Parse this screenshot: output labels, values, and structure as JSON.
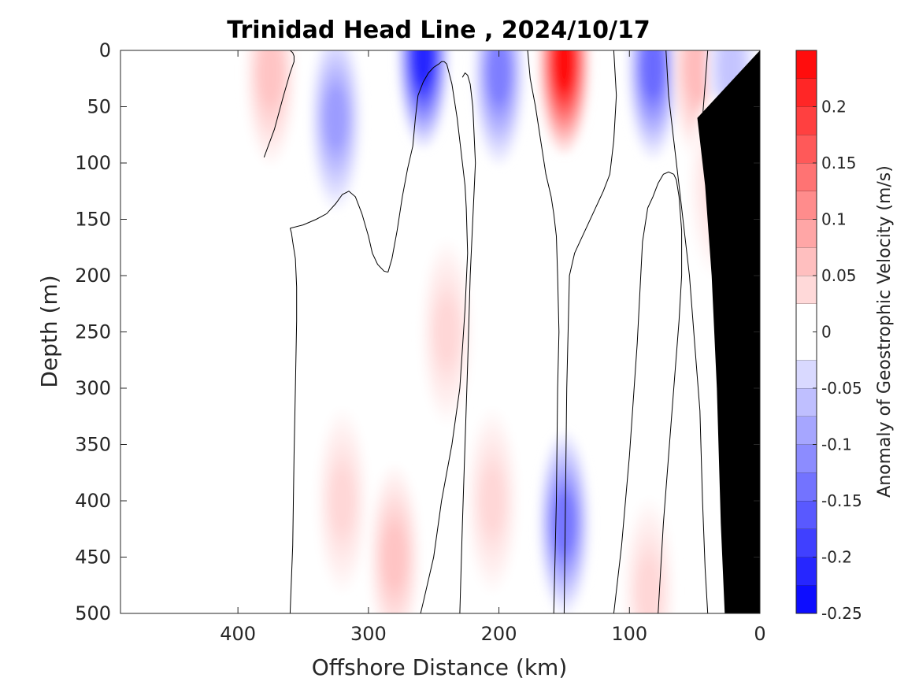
{
  "chart_data": {
    "type": "heatmap",
    "subtype": "filled-contour",
    "title": "Trinidad Head Line , 2024/10/17",
    "xlabel": "Offshore Distance (km)",
    "ylabel": "Depth (m)",
    "colorbar_label": "Anomaly of Geostrophic Velocity (m/s)",
    "xlim": [
      490,
      0
    ],
    "ylim": [
      500,
      0
    ],
    "x_reversed": true,
    "y_reversed": true,
    "x_ticks": [
      400,
      300,
      200,
      100,
      0
    ],
    "y_ticks": [
      0,
      50,
      100,
      150,
      200,
      250,
      300,
      350,
      400,
      450,
      500
    ],
    "colorbar": {
      "range": [
        -0.25,
        0.25
      ],
      "ticks": [
        -0.25,
        -0.2,
        -0.15,
        -0.1,
        -0.05,
        0,
        0.05,
        0.1,
        0.15,
        0.2
      ],
      "tick_labels": [
        "-0.25",
        "-0.2",
        "-0.15",
        "-0.1",
        "-0.05",
        "0",
        "0.05",
        "0.1",
        "0.15",
        "0.2"
      ],
      "levels": [
        -0.25,
        -0.225,
        -0.2,
        -0.175,
        -0.15,
        -0.125,
        -0.1,
        -0.075,
        -0.05,
        -0.025,
        0.025,
        0.05,
        0.075,
        0.1,
        0.125,
        0.15,
        0.175,
        0.2,
        0.225,
        0.25
      ],
      "colormap": "blue-white-red",
      "negative_color": "#0000ff",
      "positive_color": "#ff0000",
      "zero_color": "#ffffff"
    },
    "features": [
      {
        "kind": "positive",
        "x": 375,
        "depth": 20,
        "peak": 0.06
      },
      {
        "kind": "negative",
        "x": 325,
        "depth": 60,
        "peak": -0.1
      },
      {
        "kind": "negative",
        "x": 258,
        "depth": 5,
        "peak": -0.22
      },
      {
        "kind": "negative",
        "x": 200,
        "depth": 20,
        "peak": -0.13
      },
      {
        "kind": "positive",
        "x": 150,
        "depth": 10,
        "peak": 0.24
      },
      {
        "kind": "negative",
        "x": 82,
        "depth": 15,
        "peak": -0.15
      },
      {
        "kind": "positive",
        "x": 48,
        "depth": 15,
        "peak": 0.07
      },
      {
        "kind": "negative",
        "x": 22,
        "depth": 15,
        "peak": -0.06
      },
      {
        "kind": "positive",
        "x": 240,
        "depth": 250,
        "peak": 0.04
      },
      {
        "kind": "positive",
        "x": 280,
        "depth": 450,
        "peak": 0.06
      },
      {
        "kind": "positive",
        "x": 320,
        "depth": 400,
        "peak": 0.04
      },
      {
        "kind": "positive",
        "x": 205,
        "depth": 400,
        "peak": 0.04
      },
      {
        "kind": "negative",
        "x": 150,
        "depth": 420,
        "peak": -0.14
      },
      {
        "kind": "positive",
        "x": 85,
        "depth": 480,
        "peak": 0.04
      },
      {
        "kind": "positive",
        "x": 35,
        "depth": 120,
        "peak": 0.03
      }
    ],
    "zero_contours": [
      {
        "x": [
          380,
          372,
          365,
          360,
          357,
          357,
          358,
          360
        ],
        "depth": [
          95,
          70,
          40,
          20,
          10,
          5,
          2,
          0
        ]
      },
      {
        "x": [
          360,
          358,
          357,
          356,
          355,
          355,
          356,
          358,
          359,
          360
        ],
        "depth": [
          500,
          440,
          360,
          300,
          240,
          210,
          185,
          170,
          162,
          158
        ]
      },
      {
        "x": [
          360,
          350,
          340,
          332,
          325,
          320,
          315,
          310,
          305,
          300,
          297,
          293,
          288,
          285
        ],
        "depth": [
          158,
          155,
          150,
          145,
          136,
          128,
          125,
          130,
          145,
          165,
          180,
          190,
          196,
          197
        ]
      },
      {
        "x": [
          285,
          282,
          278,
          274,
          270,
          266,
          264,
          262,
          258,
          254,
          250,
          246,
          244,
          242,
          240
        ],
        "depth": [
          197,
          185,
          160,
          130,
          105,
          85,
          60,
          40,
          28,
          20,
          15,
          12,
          10,
          10,
          12
        ]
      },
      {
        "x": [
          240,
          236,
          232,
          228,
          226,
          225,
          224,
          226,
          230,
          236,
          244,
          250,
          254,
          258,
          260
        ],
        "depth": [
          12,
          30,
          60,
          100,
          120,
          140,
          180,
          230,
          300,
          350,
          400,
          450,
          470,
          490,
          500
        ]
      },
      {
        "x": [
          228,
          226,
          224,
          222,
          220,
          218,
          220,
          222,
          224,
          226,
          228,
          230
        ],
        "depth": [
          24,
          20,
          22,
          30,
          50,
          100,
          150,
          200,
          280,
          350,
          420,
          500
        ]
      },
      {
        "x": [
          178,
          176,
          172,
          168,
          164,
          160,
          158,
          156,
          155,
          154,
          155,
          156,
          158
        ],
        "depth": [
          0,
          25,
          50,
          80,
          110,
          130,
          145,
          165,
          200,
          250,
          300,
          400,
          500
        ]
      },
      {
        "x": [
          112,
          110,
          112,
          115,
          120,
          126,
          132,
          138,
          142,
          146,
          148,
          150
        ],
        "depth": [
          0,
          40,
          80,
          110,
          125,
          140,
          155,
          170,
          180,
          200,
          300,
          500
        ]
      },
      {
        "x": [
          78,
          74,
          70,
          66,
          62,
          60,
          60,
          62,
          64,
          66
        ],
        "depth": [
          500,
          420,
          360,
          300,
          240,
          200,
          160,
          130,
          115,
          110
        ]
      },
      {
        "x": [
          66,
          70,
          74,
          78,
          82,
          86,
          90,
          94,
          100,
          106,
          110,
          112
        ],
        "depth": [
          110,
          108,
          110,
          118,
          130,
          140,
          170,
          260,
          360,
          440,
          480,
          500
        ]
      },
      {
        "x": [
          72,
          70,
          66,
          62,
          58,
          54,
          50,
          46,
          44,
          42,
          40
        ],
        "depth": [
          0,
          40,
          80,
          120,
          160,
          200,
          260,
          320,
          400,
          460,
          500
        ]
      },
      {
        "x": [
          40,
          42,
          44,
          40,
          36,
          32,
          30,
          28,
          27,
          26,
          24
        ],
        "depth": [
          0,
          30,
          60,
          90,
          120,
          150,
          200,
          260,
          340,
          420,
          500
        ]
      }
    ],
    "bathymetry_mask": {
      "color": "#000000",
      "x": [
        0,
        0,
        14,
        28,
        34,
        38,
        42,
        40,
        36,
        28,
        20,
        10,
        4,
        0
      ],
      "depth": [
        500,
        0,
        0,
        0,
        0,
        0,
        0,
        0,
        0,
        0,
        0,
        0,
        0,
        0
      ]
    }
  }
}
